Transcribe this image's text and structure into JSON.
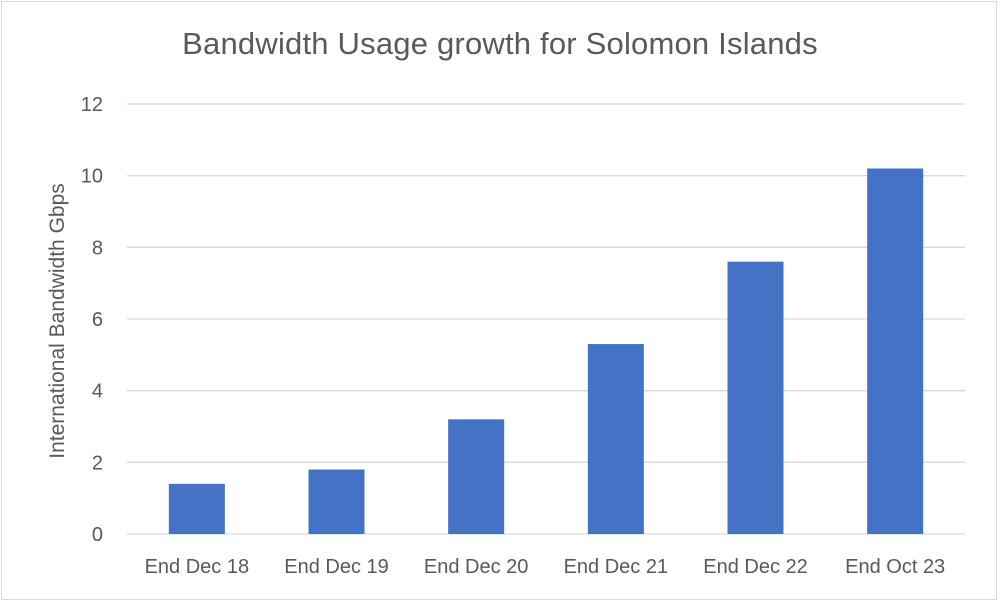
{
  "chart_data": {
    "type": "bar",
    "title": "Bandwidth Usage growth for Solomon Islands",
    "xlabel": "",
    "ylabel": "International Bandwidth Gbps",
    "categories": [
      "End Dec 18",
      "End Dec 19",
      "End Dec 20",
      "End Dec 21",
      "End Dec 22",
      "End Oct 23"
    ],
    "values": [
      1.4,
      1.8,
      3.2,
      5.3,
      7.6,
      10.2
    ],
    "ylim": [
      0,
      12
    ],
    "yticks": [
      "0",
      "2",
      "4",
      "6",
      "8",
      "10",
      "12"
    ],
    "grid": true,
    "legend": "none",
    "bar_color": "#4472C4",
    "grid_color": "#d9d9d9"
  }
}
